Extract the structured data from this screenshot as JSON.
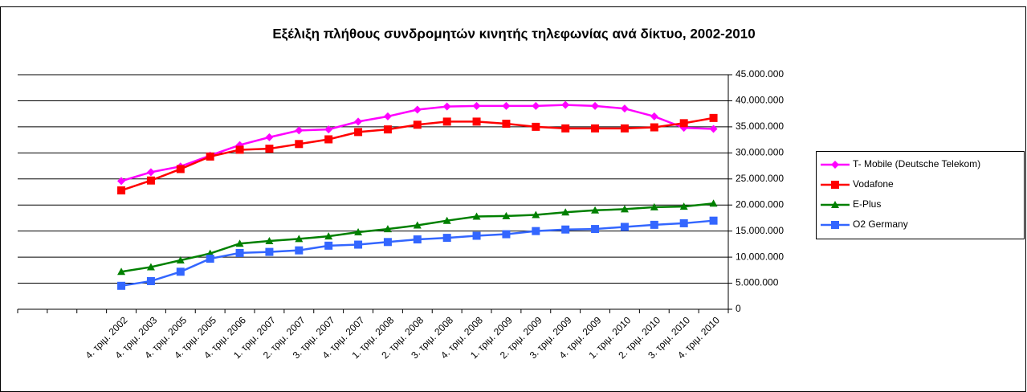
{
  "chart_data": {
    "type": "line",
    "title": "Εξέλιξη πλήθους συνδρομητών κινητής τηλεφωνίας ανά δίκτυο, 2002-2010",
    "categories": [
      null,
      null,
      null,
      "4. τριμ. 2002",
      "4. τριμ. 2003",
      "4. τριμ. 2005",
      "4. τριμ. 2005",
      "4. τριμ. 2006",
      "1. τριμ. 2007",
      "2. τριμ. 2007",
      "3. τριμ. 2007",
      "4. τριμ. 2007",
      "1. τριμ. 2008",
      "2. τριμ. 2008",
      "3. τριμ. 2008",
      "4. τριμ. 2008",
      "1. τριμ. 2009",
      "2. τριμ. 2009",
      "3. τριμ. 2009",
      "4. τριμ. 2009",
      "1. τριμ. 2010",
      "2. τριμ. 2010",
      "3. τριμ. 2010",
      "4. τριμ. 2010"
    ],
    "series": [
      {
        "name": "T- Mobile (Deutsche Telekom)",
        "color": "#ff00ff",
        "marker": "diamond",
        "values": [
          null,
          null,
          null,
          24600000,
          26300000,
          27400000,
          29500000,
          31500000,
          33000000,
          34300000,
          34500000,
          36000000,
          37000000,
          38300000,
          38900000,
          39000000,
          39000000,
          39000000,
          39200000,
          39000000,
          38500000,
          37000000,
          34800000,
          34600000
        ]
      },
      {
        "name": "Vodafone",
        "color": "#ff0000",
        "marker": "square",
        "values": [
          null,
          null,
          null,
          22800000,
          24700000,
          26900000,
          29300000,
          30600000,
          30800000,
          31700000,
          32600000,
          34000000,
          34500000,
          35400000,
          36000000,
          36000000,
          35600000,
          35000000,
          34700000,
          34700000,
          34700000,
          34900000,
          35700000,
          36700000
        ]
      },
      {
        "name": "E-Plus",
        "color": "#008000",
        "marker": "triangle",
        "values": [
          null,
          null,
          null,
          7200000,
          8100000,
          9400000,
          10700000,
          12600000,
          13100000,
          13500000,
          14000000,
          14800000,
          15400000,
          16100000,
          17000000,
          17800000,
          17900000,
          18100000,
          18600000,
          19000000,
          19200000,
          19600000,
          19700000,
          20300000
        ]
      },
      {
        "name": "O2 Germany",
        "color": "#3366ff",
        "marker": "square",
        "values": [
          null,
          null,
          null,
          4500000,
          5400000,
          7200000,
          9700000,
          10800000,
          11000000,
          11300000,
          12200000,
          12400000,
          12900000,
          13400000,
          13700000,
          14100000,
          14400000,
          15000000,
          15300000,
          15400000,
          15800000,
          16200000,
          16500000,
          17000000
        ]
      }
    ],
    "ylim": [
      0,
      45000000
    ],
    "yticks": [
      0,
      {
        "value": 5000000,
        "label": "5.000.000"
      },
      {
        "value": 10000000,
        "label": "10.000.000"
      },
      {
        "value": 15000000,
        "label": "15.000.000"
      },
      {
        "value": 20000000,
        "label": "20.000.000"
      },
      {
        "value": 25000000,
        "label": "25.000.000"
      },
      {
        "value": 30000000,
        "label": "30.000.000"
      },
      {
        "value": 35000000,
        "label": "35.000.000"
      },
      {
        "value": 40000000,
        "label": "40.000.000"
      },
      {
        "value": 45000000,
        "label": "45.000.000"
      }
    ],
    "y_axis_side": "right",
    "grid": true,
    "legend": "right"
  }
}
